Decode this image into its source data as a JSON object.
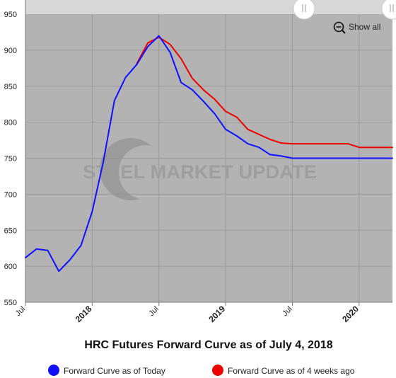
{
  "chart_data": {
    "type": "line",
    "title": "HRC Futures Forward Curve as of July 4, 2018",
    "xlabel": "",
    "ylabel": "",
    "ylim": [
      550,
      950
    ],
    "yticks": [
      550,
      600,
      650,
      700,
      750,
      800,
      850,
      900,
      950
    ],
    "xlim": [
      "2017-07-01",
      "2020-04-01"
    ],
    "xticks": [
      {
        "date": "2017-07-01",
        "label": "Jul",
        "bold": false
      },
      {
        "date": "2018-01-01",
        "label": "2018",
        "bold": true
      },
      {
        "date": "2018-07-01",
        "label": "Jul",
        "bold": false
      },
      {
        "date": "2019-01-01",
        "label": "2019",
        "bold": true
      },
      {
        "date": "2019-07-01",
        "label": "Jul",
        "bold": false
      },
      {
        "date": "2020-01-01",
        "label": "2020",
        "bold": true
      }
    ],
    "grid": true,
    "legend_position": "bottom",
    "series": [
      {
        "name": "Forward Curve as of Today",
        "color": "#1010ff",
        "points": [
          [
            "2017-07-01",
            612
          ],
          [
            "2017-08-01",
            624
          ],
          [
            "2017-09-01",
            622
          ],
          [
            "2017-10-01",
            593
          ],
          [
            "2017-11-01",
            609
          ],
          [
            "2017-12-01",
            629
          ],
          [
            "2018-01-01",
            676
          ],
          [
            "2018-02-01",
            745
          ],
          [
            "2018-03-01",
            830
          ],
          [
            "2018-04-01",
            862
          ],
          [
            "2018-05-01",
            880
          ],
          [
            "2018-06-01",
            905
          ],
          [
            "2018-07-01",
            920
          ],
          [
            "2018-08-01",
            897
          ],
          [
            "2018-09-01",
            855
          ],
          [
            "2018-10-01",
            845
          ],
          [
            "2018-11-01",
            829
          ],
          [
            "2018-12-01",
            812
          ],
          [
            "2019-01-01",
            790
          ],
          [
            "2019-02-01",
            781
          ],
          [
            "2019-03-01",
            770
          ],
          [
            "2019-04-01",
            765
          ],
          [
            "2019-05-01",
            755
          ],
          [
            "2019-06-01",
            753
          ],
          [
            "2019-07-01",
            750
          ],
          [
            "2019-08-01",
            750
          ],
          [
            "2019-09-01",
            750
          ],
          [
            "2019-10-01",
            750
          ],
          [
            "2019-11-01",
            750
          ],
          [
            "2019-12-01",
            750
          ],
          [
            "2020-01-01",
            750
          ],
          [
            "2020-02-01",
            750
          ],
          [
            "2020-03-01",
            750
          ],
          [
            "2020-04-01",
            750
          ]
        ]
      },
      {
        "name": "Forward Curve as of 4 weeks ago",
        "color": "#ee0000",
        "points": [
          [
            "2018-05-01",
            881
          ],
          [
            "2018-06-01",
            910
          ],
          [
            "2018-07-01",
            918
          ],
          [
            "2018-08-01",
            908
          ],
          [
            "2018-09-01",
            888
          ],
          [
            "2018-10-01",
            861
          ],
          [
            "2018-11-01",
            845
          ],
          [
            "2018-12-01",
            832
          ],
          [
            "2019-01-01",
            815
          ],
          [
            "2019-02-01",
            807
          ],
          [
            "2019-03-01",
            790
          ],
          [
            "2019-04-01",
            783
          ],
          [
            "2019-05-01",
            776
          ],
          [
            "2019-06-01",
            771
          ],
          [
            "2019-07-01",
            770
          ],
          [
            "2019-08-01",
            770
          ],
          [
            "2019-09-01",
            770
          ],
          [
            "2019-10-01",
            770
          ],
          [
            "2019-11-01",
            770
          ],
          [
            "2019-12-01",
            770
          ],
          [
            "2020-01-01",
            765
          ],
          [
            "2020-02-01",
            765
          ],
          [
            "2020-03-01",
            765
          ],
          [
            "2020-04-01",
            765
          ]
        ]
      }
    ]
  },
  "watermark": "STEEL MARKET UPDATE",
  "controls": {
    "show_all_label": "Show all",
    "zoom_icon": "zoom-out-icon",
    "navigator_handle_icon": "drag-handle-icon"
  },
  "colors": {
    "plot_background": "#b3b3b3",
    "navigator_background": "#d7d7d7",
    "grid": "#9a9a9a"
  }
}
